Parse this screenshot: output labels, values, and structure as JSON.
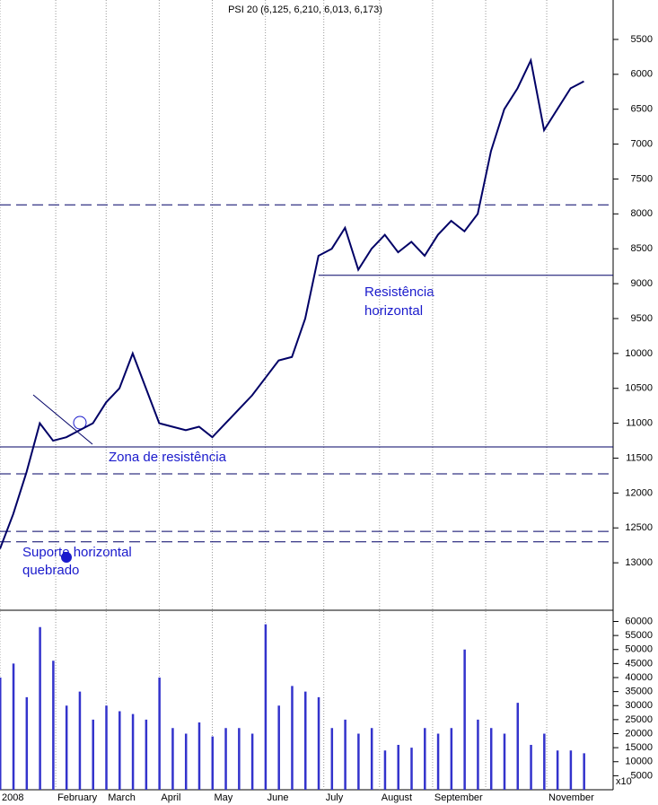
{
  "chart_data": {
    "type": "price-volume",
    "title": "PSI 20 (6,125, 6,210, 6,013, 6,173)",
    "annotations": [
      {
        "text": "Resistência horizontal",
        "lines": [
          "Resistência",
          "horizontal"
        ]
      },
      {
        "text": "Zona de resistência"
      },
      {
        "text": "Suporte horizontal quebrado",
        "lines": [
          "Suporte horizontal",
          "quebrado"
        ]
      }
    ],
    "volume_unit": "x10",
    "xlim": [
      0,
      230
    ],
    "xticks": [
      {
        "value": 0,
        "label": "2008"
      },
      {
        "value": 21,
        "label": "February"
      },
      {
        "value": 40,
        "label": "March"
      },
      {
        "value": 60,
        "label": "April"
      },
      {
        "value": 80,
        "label": "May"
      },
      {
        "value": 100,
        "label": "June"
      },
      {
        "value": 122,
        "label": "July"
      },
      {
        "value": 143,
        "label": "August"
      },
      {
        "value": 163,
        "label": "September"
      },
      {
        "value": 183,
        "label": null
      },
      {
        "value": 206,
        "label": "November"
      }
    ],
    "ylim": [
      4935,
      13680
    ],
    "y_inverted": true,
    "yticks": [
      5500,
      6000,
      6500,
      7000,
      7500,
      8000,
      8500,
      9000,
      9500,
      10000,
      10500,
      11000,
      11500,
      12000,
      12500,
      13000
    ],
    "y2lim": [
      0,
      64000
    ],
    "y2ticks": [
      5000,
      10000,
      15000,
      20000,
      25000,
      30000,
      35000,
      40000,
      45000,
      50000,
      55000,
      60000
    ],
    "levels": [
      {
        "value": 7870,
        "style": "dashed"
      },
      {
        "value": 8880,
        "style": "solid",
        "from": 120
      },
      {
        "value": 11340,
        "style": "solid"
      },
      {
        "value": 11725,
        "style": "dashed"
      },
      {
        "value": 12550,
        "style": "dashed"
      },
      {
        "value": 12700,
        "style": "dashed"
      }
    ],
    "series": [
      {
        "name": "PSI 20",
        "color": "#000066",
        "x": [
          0,
          5,
          10,
          15,
          20,
          25,
          30,
          35,
          40,
          45,
          50,
          55,
          60,
          65,
          70,
          75,
          80,
          85,
          90,
          95,
          100,
          105,
          110,
          115,
          120,
          125,
          130,
          135,
          140,
          145,
          150,
          155,
          160,
          165,
          170,
          175,
          180,
          185,
          190,
          195,
          200,
          205,
          210,
          215,
          220
        ],
        "values": [
          12800,
          12300,
          11700,
          11000,
          11250,
          11200,
          11100,
          11000,
          10700,
          10500,
          10000,
          10500,
          11000,
          11050,
          11100,
          11050,
          11200,
          11000,
          10800,
          10600,
          10350,
          10100,
          10050,
          9500,
          8600,
          8500,
          8200,
          8800,
          8500,
          8300,
          8550,
          8400,
          8600,
          8300,
          8100,
          8250,
          8000,
          7100,
          6500,
          6200,
          5800,
          6800,
          6500,
          6200,
          6100
        ]
      },
      {
        "name": "Volume",
        "color": "#3333cc",
        "axis": "y2",
        "x": [
          0,
          5,
          10,
          15,
          20,
          25,
          30,
          35,
          40,
          45,
          50,
          55,
          60,
          65,
          70,
          75,
          80,
          85,
          90,
          95,
          100,
          105,
          110,
          115,
          120,
          125,
          130,
          135,
          140,
          145,
          150,
          155,
          160,
          165,
          170,
          175,
          180,
          185,
          190,
          195,
          200,
          205,
          210,
          215,
          220
        ],
        "values": [
          40000,
          45000,
          33000,
          58000,
          46000,
          30000,
          35000,
          25000,
          30000,
          28000,
          27000,
          25000,
          40000,
          22000,
          20000,
          24000,
          19000,
          22000,
          22000,
          20000,
          59000,
          30000,
          37000,
          35000,
          33000,
          22000,
          25000,
          20000,
          22000,
          14000,
          16000,
          15000,
          22000,
          20000,
          22000,
          50000,
          25000,
          22000,
          20000,
          31000,
          16000,
          20000,
          14000,
          14000,
          13000
        ]
      }
    ]
  }
}
